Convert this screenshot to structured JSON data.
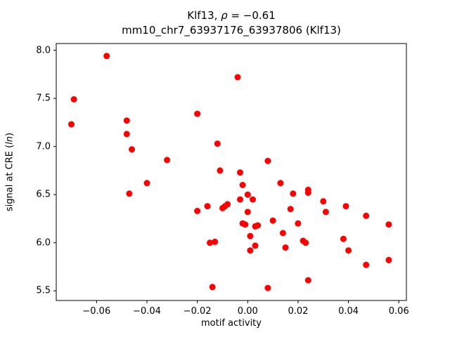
{
  "figure": {
    "title": {
      "line1_pre": "Klf13, ",
      "line1_italic": "ρ",
      "line1_post": " = −0.61",
      "line2": "mm10_chr7_63937176_63937806 (Klf13)"
    },
    "xlabel": "motif activity",
    "ylabel_pre": "signal at CRE (",
    "ylabel_italic": "ln",
    "ylabel_post": ")"
  },
  "chart_data": {
    "type": "scatter",
    "title": "Klf13, ρ = −0.61",
    "subtitle": "mm10_chr7_63937176_63937806 (Klf13)",
    "xlabel": "motif activity",
    "ylabel": "signal at CRE (ln)",
    "marker_color": "#ff0000",
    "marker_radius_px": 4.5,
    "xlim": [
      -0.076,
      0.063
    ],
    "ylim": [
      5.4,
      8.07
    ],
    "grid": false,
    "legend": "none",
    "xticks": [
      -0.06,
      -0.04,
      -0.02,
      0.0,
      0.02,
      0.04,
      0.06
    ],
    "xtick_labels": [
      "−0.06",
      "−0.04",
      "−0.02",
      "0.00",
      "0.02",
      "0.04",
      "0.06"
    ],
    "yticks": [
      5.5,
      6.0,
      6.5,
      7.0,
      7.5,
      8.0
    ],
    "ytick_labels": [
      "5.5",
      "6.0",
      "6.5",
      "7.0",
      "7.5",
      "8.0"
    ],
    "x": [
      -0.07,
      -0.069,
      -0.056,
      -0.048,
      -0.048,
      -0.047,
      -0.046,
      -0.04,
      -0.032,
      -0.02,
      -0.02,
      -0.016,
      -0.015,
      -0.014,
      -0.013,
      -0.012,
      -0.011,
      -0.01,
      -0.009,
      -0.008,
      -0.004,
      -0.003,
      -0.003,
      -0.002,
      -0.002,
      -0.001,
      0.0,
      0.0,
      0.001,
      0.001,
      0.002,
      0.003,
      0.003,
      0.004,
      0.008,
      0.008,
      0.01,
      0.013,
      0.014,
      0.015,
      0.017,
      0.018,
      0.02,
      0.022,
      0.023,
      0.024,
      0.024,
      0.024,
      0.03,
      0.031,
      0.038,
      0.039,
      0.04,
      0.047,
      0.047,
      0.056,
      0.056
    ],
    "y": [
      7.23,
      7.49,
      7.94,
      7.27,
      7.13,
      6.51,
      6.97,
      6.62,
      6.86,
      7.34,
      6.33,
      6.38,
      6.0,
      5.54,
      6.01,
      7.03,
      6.75,
      6.36,
      6.38,
      6.4,
      7.72,
      6.73,
      6.45,
      6.6,
      6.2,
      6.19,
      6.5,
      6.32,
      6.07,
      5.92,
      6.45,
      6.17,
      5.97,
      6.18,
      6.85,
      5.53,
      6.23,
      6.62,
      6.1,
      5.95,
      6.35,
      6.51,
      6.2,
      6.02,
      6.0,
      6.55,
      6.52,
      5.61,
      6.43,
      6.32,
      6.04,
      6.38,
      5.92,
      6.28,
      5.77,
      6.19,
      5.82
    ]
  }
}
